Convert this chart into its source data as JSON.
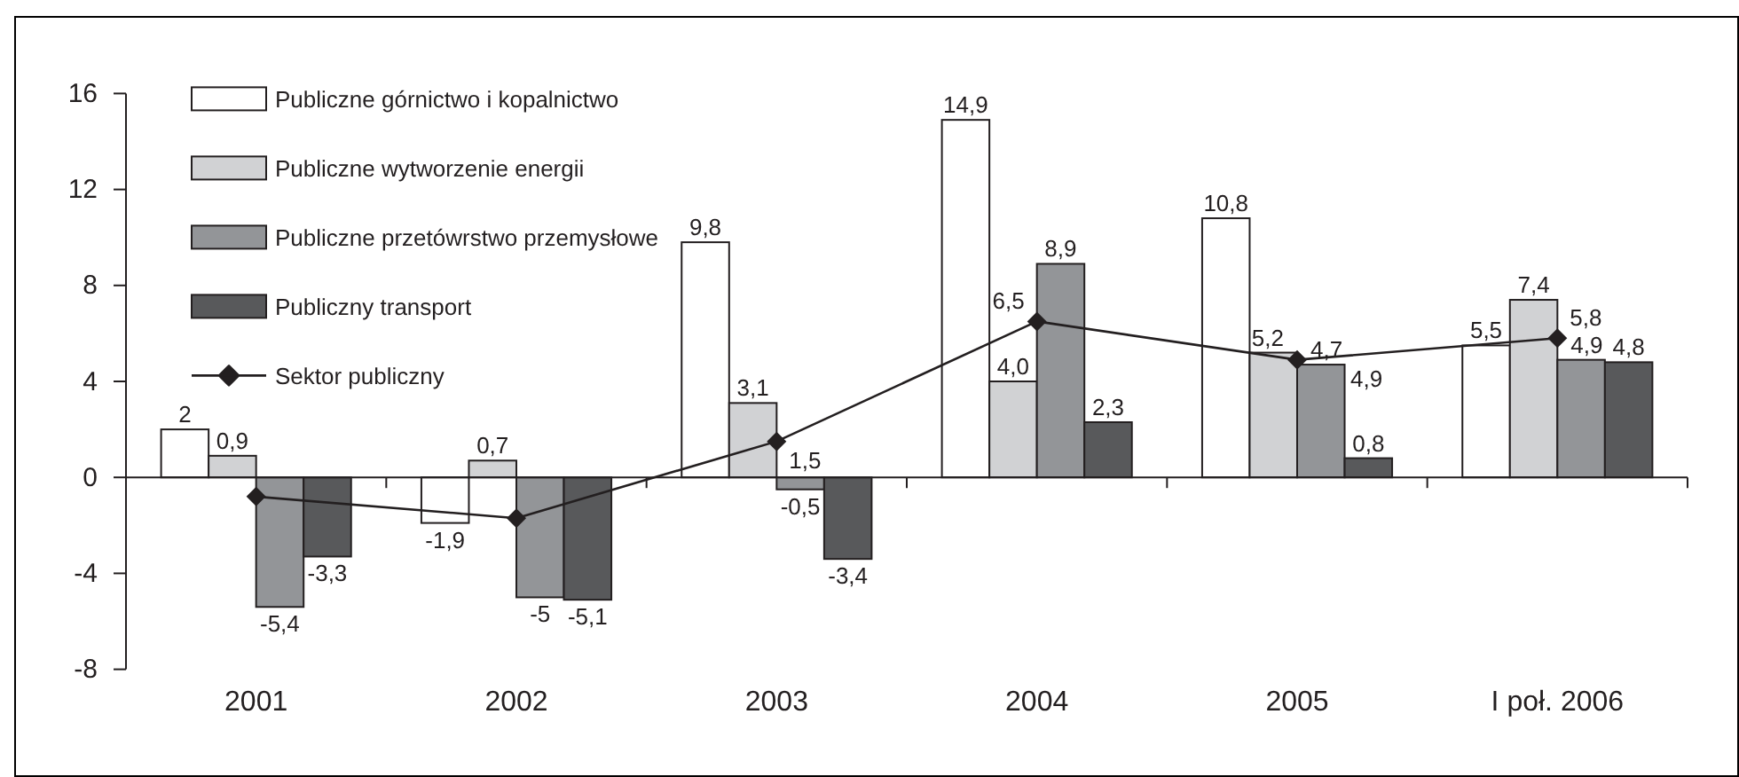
{
  "chart_data": {
    "type": "bar",
    "categories": [
      "2001",
      "2002",
      "2003",
      "2004",
      "2005",
      "I poł. 2006"
    ],
    "series": [
      {
        "name": "Publiczne górnictwo i kopalnictwo",
        "color": "#ffffff",
        "values": [
          2,
          -1.9,
          9.8,
          14.9,
          10.8,
          5.5
        ],
        "value_labels": [
          "2",
          "-1,9",
          "9,8",
          "14,9",
          "10,8",
          "5,5"
        ]
      },
      {
        "name": "Publiczne wytworzenie energii",
        "color": "#d1d2d4",
        "values": [
          0.9,
          0.7,
          3.1,
          4.0,
          5.2,
          7.4
        ],
        "value_labels": [
          "0,9",
          "0,7",
          "3,1",
          "4,0",
          "5,2",
          "7,4"
        ]
      },
      {
        "name": "Publiczne przetówrstwo przemysłowe",
        "color": "#939598",
        "values": [
          -5.4,
          -5,
          -0.5,
          8.9,
          4.7,
          4.9
        ],
        "value_labels": [
          "-5,4",
          "-5",
          "-0,5",
          "8,9",
          "4,7",
          "4,9"
        ]
      },
      {
        "name": "Publiczny transport",
        "color": "#58595b",
        "values": [
          -3.3,
          -5.1,
          -3.4,
          2.3,
          0.8,
          4.8
        ],
        "value_labels": [
          "-3,3",
          "-5,1",
          "-3,4",
          "2,3",
          "0,8",
          "4,8"
        ]
      },
      {
        "name": "Sektor publiczny",
        "type": "line",
        "color": "#231f20",
        "values": [
          -0.8,
          -1.7,
          1.5,
          6.5,
          4.9,
          5.8
        ],
        "value_labels": [
          null,
          null,
          "1,5",
          "6,5",
          "4,9",
          "5,8"
        ]
      }
    ],
    "ylim": [
      -8,
      16
    ],
    "yticks": [
      -8,
      -4,
      0,
      4,
      8,
      12,
      16
    ],
    "legend": "top left",
    "marker": "diamond"
  }
}
